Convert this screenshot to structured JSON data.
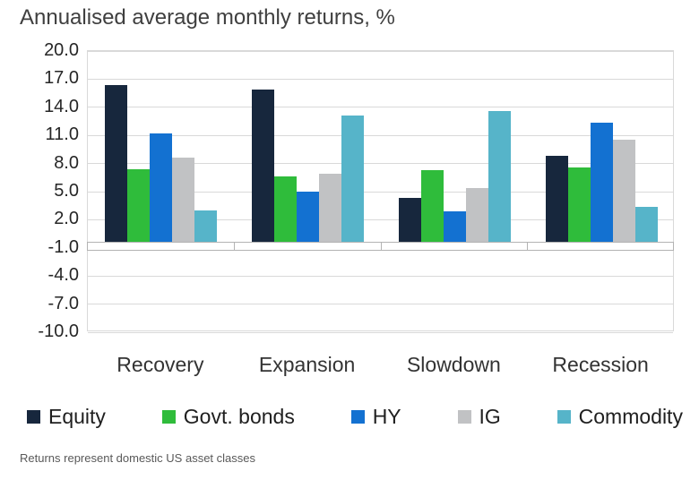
{
  "chart_data": {
    "type": "bar",
    "title": "Annualised average monthly returns, %",
    "categories": [
      "Recovery",
      "Expansion",
      "Slowdown",
      "Recession"
    ],
    "series": [
      {
        "name": "Equity",
        "color": "#17273d",
        "values": [
          16.4,
          15.9,
          4.3,
          8.8
        ]
      },
      {
        "name": "Govt. bonds",
        "color": "#2fbc3b",
        "values": [
          7.4,
          6.6,
          7.3,
          7.6
        ]
      },
      {
        "name": "HY",
        "color": "#1371d1",
        "values": [
          11.2,
          5.0,
          2.9,
          12.4
        ]
      },
      {
        "name": "IG",
        "color": "#c1c2c4",
        "values": [
          8.6,
          6.9,
          5.4,
          10.5
        ]
      },
      {
        "name": "Commodity",
        "color": "#56b4c9",
        "values": [
          3.0,
          13.1,
          13.6,
          3.4
        ]
      }
    ],
    "yticks": [
      20.0,
      17.0,
      14.0,
      11.0,
      8.0,
      5.0,
      2.0,
      -1.0,
      -4.0,
      -7.0,
      -10.0
    ],
    "ylim": [
      -10.0,
      20.0
    ],
    "grid": true,
    "gridline_color": "#d9d9d9",
    "legend_position": "bottom",
    "footnote": "Returns represent domestic US asset classes"
  }
}
